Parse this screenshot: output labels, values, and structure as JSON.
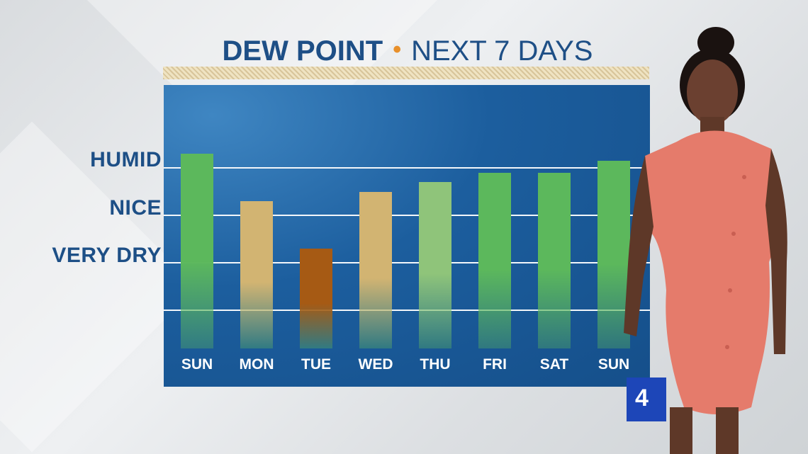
{
  "title": {
    "bold": "DEW POINT",
    "separator": "•",
    "rest": "NEXT 7 DAYS"
  },
  "categories_axis": [
    "HUMID",
    "NICE",
    "VERY DRY"
  ],
  "colors": {
    "humid": "#5cb85c",
    "nice": "#d2b472",
    "dry": "#a65a14",
    "transition": "#8fc47a",
    "panel": "#1c5e9e",
    "text": "#1d4f86"
  },
  "chart_data": {
    "type": "bar",
    "categories": [
      "SUN",
      "MON",
      "TUE",
      "WED",
      "THU",
      "FRI",
      "SAT",
      "SUN"
    ],
    "values": [
      3.3,
      2.3,
      1.3,
      2.5,
      2.7,
      2.9,
      2.9,
      3.15
    ],
    "bar_colors": [
      "#5cb85c",
      "#d2b472",
      "#a65a14",
      "#d2b472",
      "#8fc47a",
      "#5cb85c",
      "#5cb85c",
      "#5cb85c"
    ],
    "gridlines": [
      0,
      1,
      2,
      3
    ],
    "ylim": [
      -1,
      4.2
    ],
    "title": "DEW POINT • NEXT 7 DAYS",
    "y_tick_labels": {
      "3": "HUMID",
      "2": "NICE",
      "1": "VERY DRY"
    }
  }
}
